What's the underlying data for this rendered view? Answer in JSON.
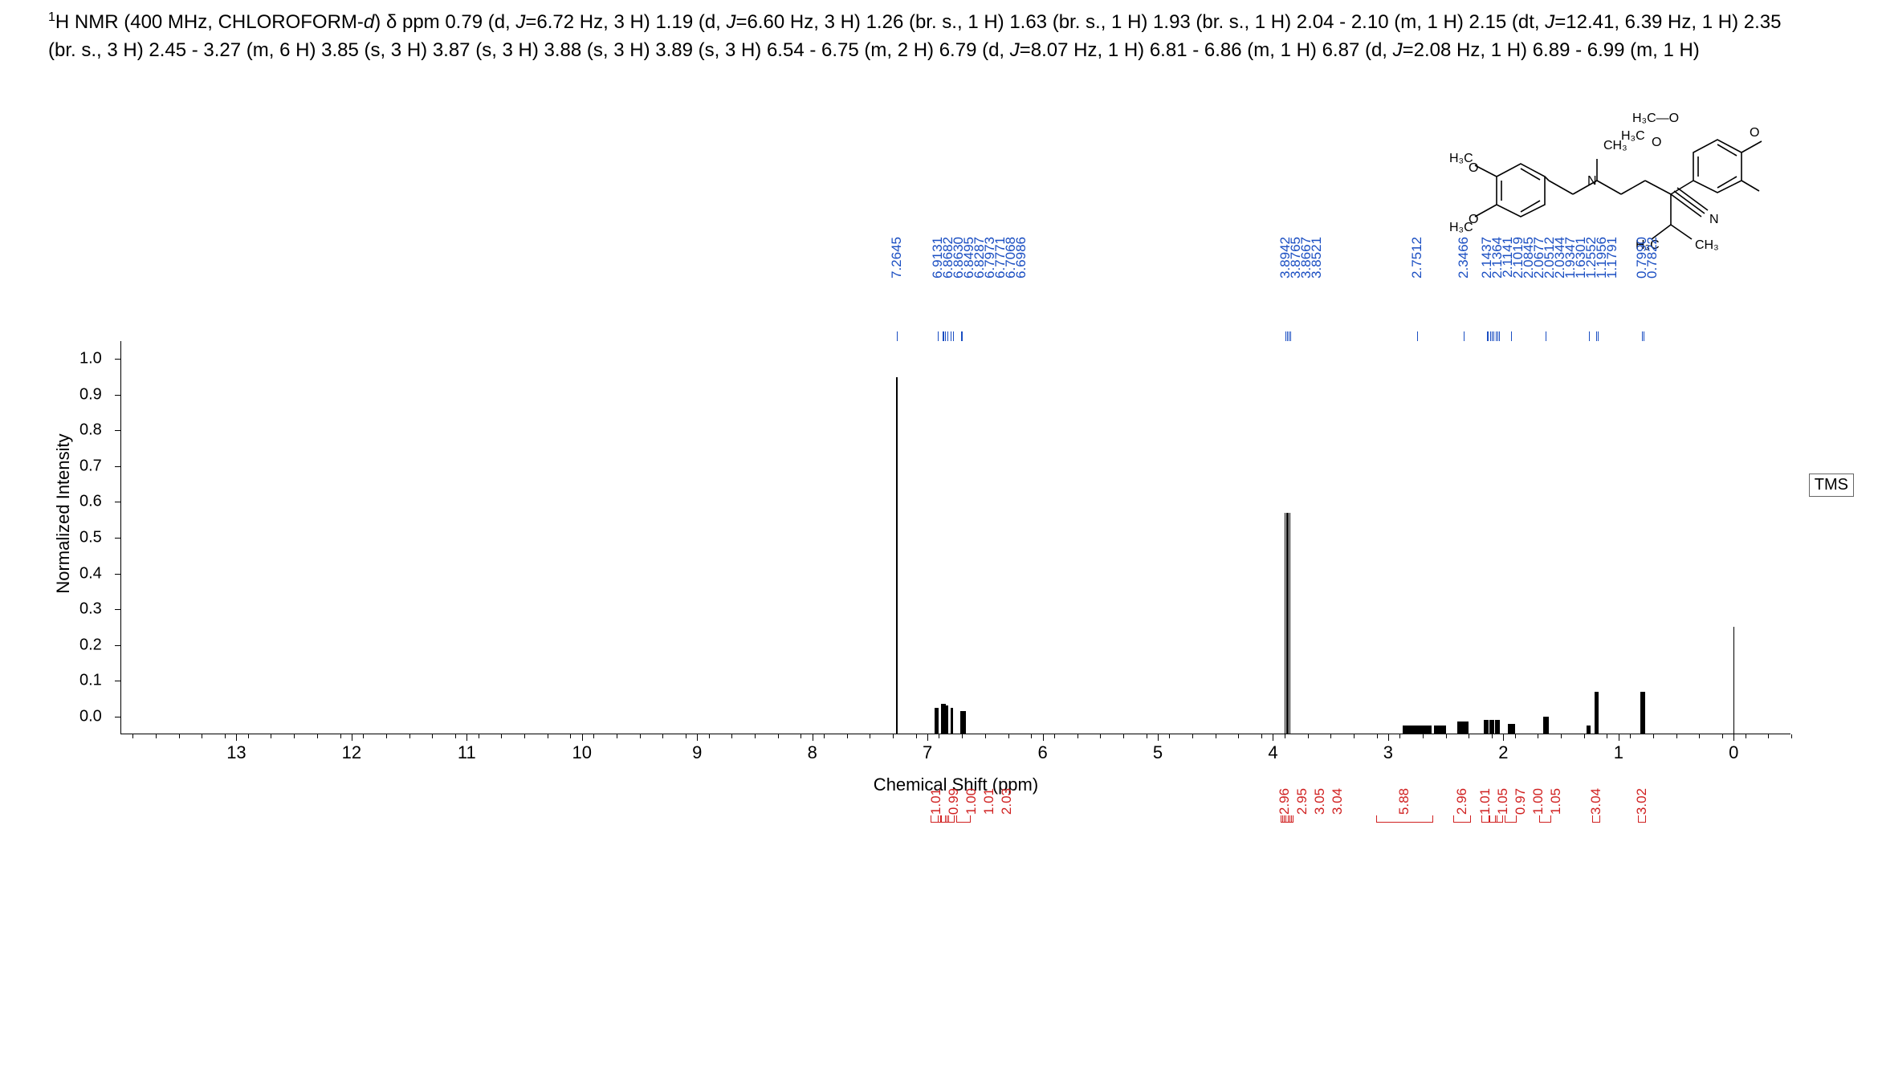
{
  "header": {
    "line": "<sup>1</sup>H NMR (400 MHz, CHLOROFORM-<span class='it'>d</span>) &delta; ppm 0.79 (d, <span class='it'>J</span>=6.72 Hz, 3 H) 1.19 (d, <span class='it'>J</span>=6.60 Hz, 3 H) 1.26 (br. s., 1 H) 1.63 (br. s., 1 H) 1.93 (br. s., 1 H) 2.04 - 2.10 (m, 1 H) 2.15 (dt, <span class='it'>J</span>=12.41, 6.39 Hz, 1 H) 2.35 (br. s., 3 H) 2.45 - 3.27 (m, 6 H) 3.85 (s, 3 H) 3.87 (s, 3 H) 3.88 (s, 3 H) 3.89 (s, 3 H) 6.54 - 6.75 (m, 2 H) 6.79 (d, <span class='it'>J</span>=8.07 Hz, 1 H) 6.81 - 6.86 (m, 1 H) 6.87 (d,  <span class='it'>J</span>=2.08 Hz, 1 H) 6.89 - 6.99 (m, 1 H)"
  },
  "chart": {
    "xaxis": {
      "min": -0.5,
      "max": 14.0,
      "title": "Chemical Shift (ppm)",
      "major_ticks": [
        0,
        1,
        2,
        3,
        4,
        5,
        6,
        7,
        8,
        9,
        10,
        11,
        12,
        13
      ],
      "minor_step": 0.2
    },
    "yaxis": {
      "min": -0.05,
      "max": 1.05,
      "title": "Normalized Intensity",
      "major_ticks": [
        0,
        0.1,
        0.2,
        0.3,
        0.4,
        0.5,
        0.6,
        0.7,
        0.8,
        0.9,
        1.0
      ]
    },
    "baseline_y": 0,
    "peak_color": "#000000",
    "label_color": "#1a4ec2",
    "integral_color": "#d02020",
    "background_color": "#ffffff",
    "tms_label": "TMS",
    "peak_labels_ppm": [
      7.2645,
      6.9131,
      6.8682,
      6.863,
      6.8495,
      6.8287,
      6.7973,
      6.7771,
      6.7068,
      6.6986,
      3.8942,
      3.8765,
      3.8667,
      3.8521,
      2.7512,
      2.3466,
      2.1437,
      2.1364,
      2.1141,
      2.1019,
      2.0845,
      2.0677,
      2.0512,
      2.0344,
      1.9347,
      1.6301,
      1.2552,
      1.1956,
      1.1791,
      0.799,
      0.7822
    ],
    "integrals": [
      {
        "ppm": 6.92,
        "label": "1.01",
        "width_ppm": 0.09
      },
      {
        "ppm": 6.87,
        "label": "0.99",
        "width_ppm": 0.04
      },
      {
        "ppm": 6.84,
        "label": "1.00",
        "width_ppm": 0.05
      },
      {
        "ppm": 6.79,
        "label": "1.01",
        "width_ppm": 0.05
      },
      {
        "ppm": 6.68,
        "label": "2.03",
        "width_ppm": 0.12
      },
      {
        "ppm": 3.89,
        "label": "2.96",
        "width_ppm": 0.03
      },
      {
        "ppm": 3.878,
        "label": "2.95",
        "width_ppm": 0.03
      },
      {
        "ppm": 3.865,
        "label": "3.05",
        "width_ppm": 0.03
      },
      {
        "ppm": 3.852,
        "label": "3.04",
        "width_ppm": 0.03
      },
      {
        "ppm": 2.85,
        "label": "5.88",
        "width_ppm": 0.5
      },
      {
        "ppm": 2.35,
        "label": "2.96",
        "width_ppm": 0.15
      },
      {
        "ppm": 2.15,
        "label": "1.01",
        "width_ppm": 0.07
      },
      {
        "ppm": 2.08,
        "label": "1.05",
        "width_ppm": 0.07
      },
      {
        "ppm": 2.03,
        "label": "0.97",
        "width_ppm": 0.07
      },
      {
        "ppm": 1.93,
        "label": "1.00",
        "width_ppm": 0.1
      },
      {
        "ppm": 1.63,
        "label": "1.05",
        "width_ppm": 0.1
      },
      {
        "ppm": 1.19,
        "label": "3.04",
        "width_ppm": 0.07
      },
      {
        "ppm": 0.79,
        "label": "3.02",
        "width_ppm": 0.07
      }
    ],
    "spectrum_peaks": [
      {
        "ppm": 7.2645,
        "height": 1.0,
        "width": 0.008
      },
      {
        "ppm": 6.92,
        "height": 0.075,
        "width": 0.03
      },
      {
        "ppm": 6.87,
        "height": 0.085,
        "width": 0.02
      },
      {
        "ppm": 6.85,
        "height": 0.085,
        "width": 0.02
      },
      {
        "ppm": 6.83,
        "height": 0.08,
        "width": 0.02
      },
      {
        "ppm": 6.79,
        "height": 0.075,
        "width": 0.02
      },
      {
        "ppm": 6.7,
        "height": 0.065,
        "width": 0.03
      },
      {
        "ppm": 6.68,
        "height": 0.065,
        "width": 0.03
      },
      {
        "ppm": 3.894,
        "height": 0.62,
        "width": 0.006
      },
      {
        "ppm": 3.878,
        "height": 0.62,
        "width": 0.006
      },
      {
        "ppm": 3.867,
        "height": 0.62,
        "width": 0.006
      },
      {
        "ppm": 3.852,
        "height": 0.62,
        "width": 0.006
      },
      {
        "ppm": 2.75,
        "height": 0.025,
        "width": 0.25
      },
      {
        "ppm": 2.55,
        "height": 0.025,
        "width": 0.1
      },
      {
        "ppm": 2.35,
        "height": 0.035,
        "width": 0.1
      },
      {
        "ppm": 2.15,
        "height": 0.04,
        "width": 0.04
      },
      {
        "ppm": 2.1,
        "height": 0.04,
        "width": 0.04
      },
      {
        "ppm": 2.05,
        "height": 0.04,
        "width": 0.04
      },
      {
        "ppm": 1.93,
        "height": 0.03,
        "width": 0.06
      },
      {
        "ppm": 1.63,
        "height": 0.05,
        "width": 0.05
      },
      {
        "ppm": 1.26,
        "height": 0.025,
        "width": 0.03
      },
      {
        "ppm": 1.2,
        "height": 0.12,
        "width": 0.02
      },
      {
        "ppm": 1.18,
        "height": 0.12,
        "width": 0.02
      },
      {
        "ppm": 0.8,
        "height": 0.12,
        "width": 0.02
      },
      {
        "ppm": 0.78,
        "height": 0.12,
        "width": 0.02
      },
      {
        "ppm": 0.0,
        "height": 0.3,
        "width": 0.01
      }
    ]
  },
  "molecule_labels": [
    "H₃C—O",
    "H₃C",
    "O",
    "CH₃",
    "N",
    "N",
    "O",
    "H₃C",
    "H₃C",
    "O",
    "CH₃",
    "H₃C"
  ]
}
